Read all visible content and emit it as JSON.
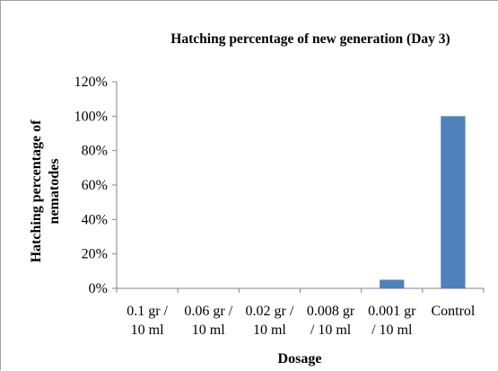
{
  "chart_data": {
    "type": "bar",
    "title": "Hatching percentage of new generation (Day 3)",
    "xlabel": "Dosage",
    "ylabel": [
      "Hatching percentage of",
      "nematodes"
    ],
    "categories": [
      [
        "0.1 gr /",
        "10 ml"
      ],
      [
        "0.06 gr /",
        "10 ml"
      ],
      [
        "0.02 gr /",
        "10 ml"
      ],
      [
        "0.008 gr",
        "/ 10 ml"
      ],
      [
        "0.001 gr",
        "/ 10 ml"
      ],
      [
        "Control"
      ]
    ],
    "values": [
      0,
      0,
      0,
      0,
      5,
      100
    ],
    "ylim": [
      0,
      120
    ],
    "yticks": [
      "0%",
      "20%",
      "40%",
      "60%",
      "80%",
      "100%",
      "120%"
    ],
    "bar_color": "#4f81bd",
    "grid": false,
    "legend": "none"
  }
}
